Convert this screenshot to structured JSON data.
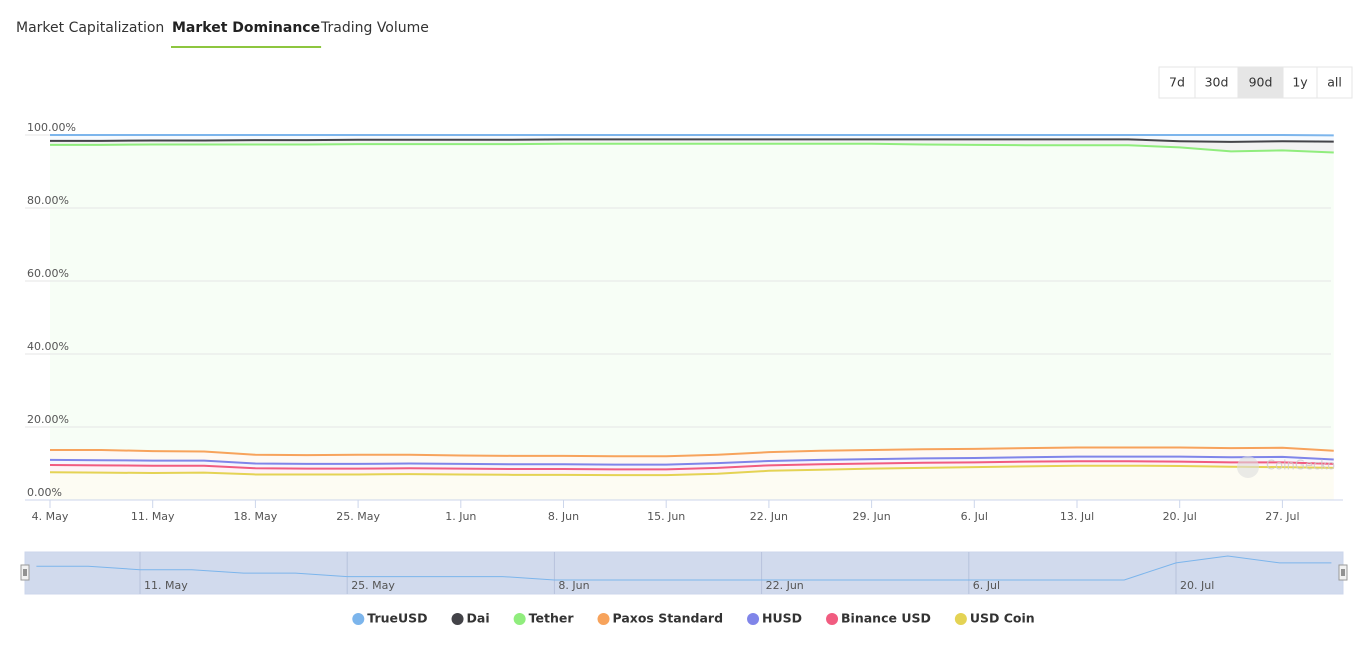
{
  "tabs": [
    "Market Capitalization",
    "Market Dominance",
    "Trading Volume"
  ],
  "active_tab": 1,
  "range_buttons": [
    "7d",
    "30d",
    "90d",
    "1y",
    "all"
  ],
  "active_range": 2,
  "watermark": "CoinGecko",
  "chart_data": {
    "type": "stacked_area",
    "categories": [
      "4. May",
      null,
      "11. May",
      null,
      "18. May",
      null,
      "25. May",
      null,
      "1. Jun",
      null,
      "8. Jun",
      null,
      "15. Jun",
      null,
      "22. Jun",
      null,
      "29. Jun",
      null,
      "6. Jul",
      null,
      "13. Jul",
      null,
      "20. Jul",
      null,
      "27. Jul",
      null
    ],
    "series": [
      {
        "name": "TrueUSD",
        "color": "#7cb5ec",
        "values": [
          1.6,
          1.6,
          1.5,
          1.5,
          1.4,
          1.4,
          1.3,
          1.3,
          1.3,
          1.3,
          1.2,
          1.2,
          1.2,
          1.2,
          1.2,
          1.2,
          1.2,
          1.2,
          1.2,
          1.2,
          1.2,
          1.2,
          1.7,
          1.9,
          1.7,
          1.7
        ]
      },
      {
        "name": "Dai",
        "color": "#434348",
        "values": [
          1.1,
          1.1,
          1.1,
          1.1,
          1.2,
          1.2,
          1.2,
          1.2,
          1.2,
          1.2,
          1.2,
          1.2,
          1.2,
          1.2,
          1.2,
          1.2,
          1.2,
          1.4,
          1.5,
          1.6,
          1.6,
          1.6,
          1.7,
          2.6,
          2.5,
          3.0
        ]
      },
      {
        "name": "Tether",
        "color": "#90ed7d",
        "values": [
          83.6,
          83.6,
          84.0,
          84.1,
          85.0,
          85.1,
          85.1,
          85.1,
          85.3,
          85.4,
          85.5,
          85.6,
          85.6,
          85.2,
          84.5,
          84.1,
          83.9,
          83.5,
          83.3,
          83.0,
          82.8,
          82.8,
          82.2,
          81.3,
          81.5,
          81.7
        ]
      },
      {
        "name": "Paxos Standard",
        "color": "#f7a35c",
        "values": [
          2.7,
          2.8,
          2.6,
          2.5,
          2.4,
          2.4,
          2.5,
          2.4,
          2.3,
          2.3,
          2.3,
          2.3,
          2.3,
          2.3,
          2.4,
          2.5,
          2.5,
          2.5,
          2.5,
          2.5,
          2.5,
          2.5,
          2.5,
          2.5,
          2.5,
          2.4
        ]
      },
      {
        "name": "HUSD",
        "color": "#8085e9",
        "values": [
          1.4,
          1.4,
          1.4,
          1.4,
          1.3,
          1.3,
          1.3,
          1.3,
          1.3,
          1.3,
          1.3,
          1.3,
          1.3,
          1.3,
          1.2,
          1.2,
          1.2,
          1.2,
          1.2,
          1.2,
          1.3,
          1.3,
          1.4,
          1.4,
          1.5,
          1.2
        ]
      },
      {
        "name": "Binance USD",
        "color": "#f15c80",
        "values": [
          2.0,
          2.0,
          2.0,
          1.9,
          1.7,
          1.6,
          1.6,
          1.6,
          1.6,
          1.6,
          1.6,
          1.6,
          1.6,
          1.6,
          1.5,
          1.5,
          1.4,
          1.4,
          1.3,
          1.3,
          1.2,
          1.2,
          1.2,
          1.2,
          1.3,
          1.1
        ]
      },
      {
        "name": "USD Coin",
        "color": "#e4d354",
        "values": [
          7.6,
          7.5,
          7.4,
          7.5,
          7.0,
          7.0,
          7.0,
          7.1,
          7.0,
          6.9,
          6.9,
          6.8,
          6.8,
          7.2,
          8.0,
          8.3,
          8.6,
          8.8,
          9.0,
          9.2,
          9.4,
          9.4,
          9.3,
          9.1,
          9.0,
          8.8
        ]
      }
    ],
    "ylim": [
      0,
      100
    ],
    "yticks": [
      {
        "value": 0,
        "label": "0.00%"
      },
      {
        "value": 20,
        "label": "20.00%"
      },
      {
        "value": 40,
        "label": "40.00%"
      },
      {
        "value": 60,
        "label": "60.00%"
      },
      {
        "value": 80,
        "label": "80.00%"
      },
      {
        "value": 100,
        "label": "100.00%"
      }
    ],
    "grid": true,
    "legend": "bottom"
  }
}
